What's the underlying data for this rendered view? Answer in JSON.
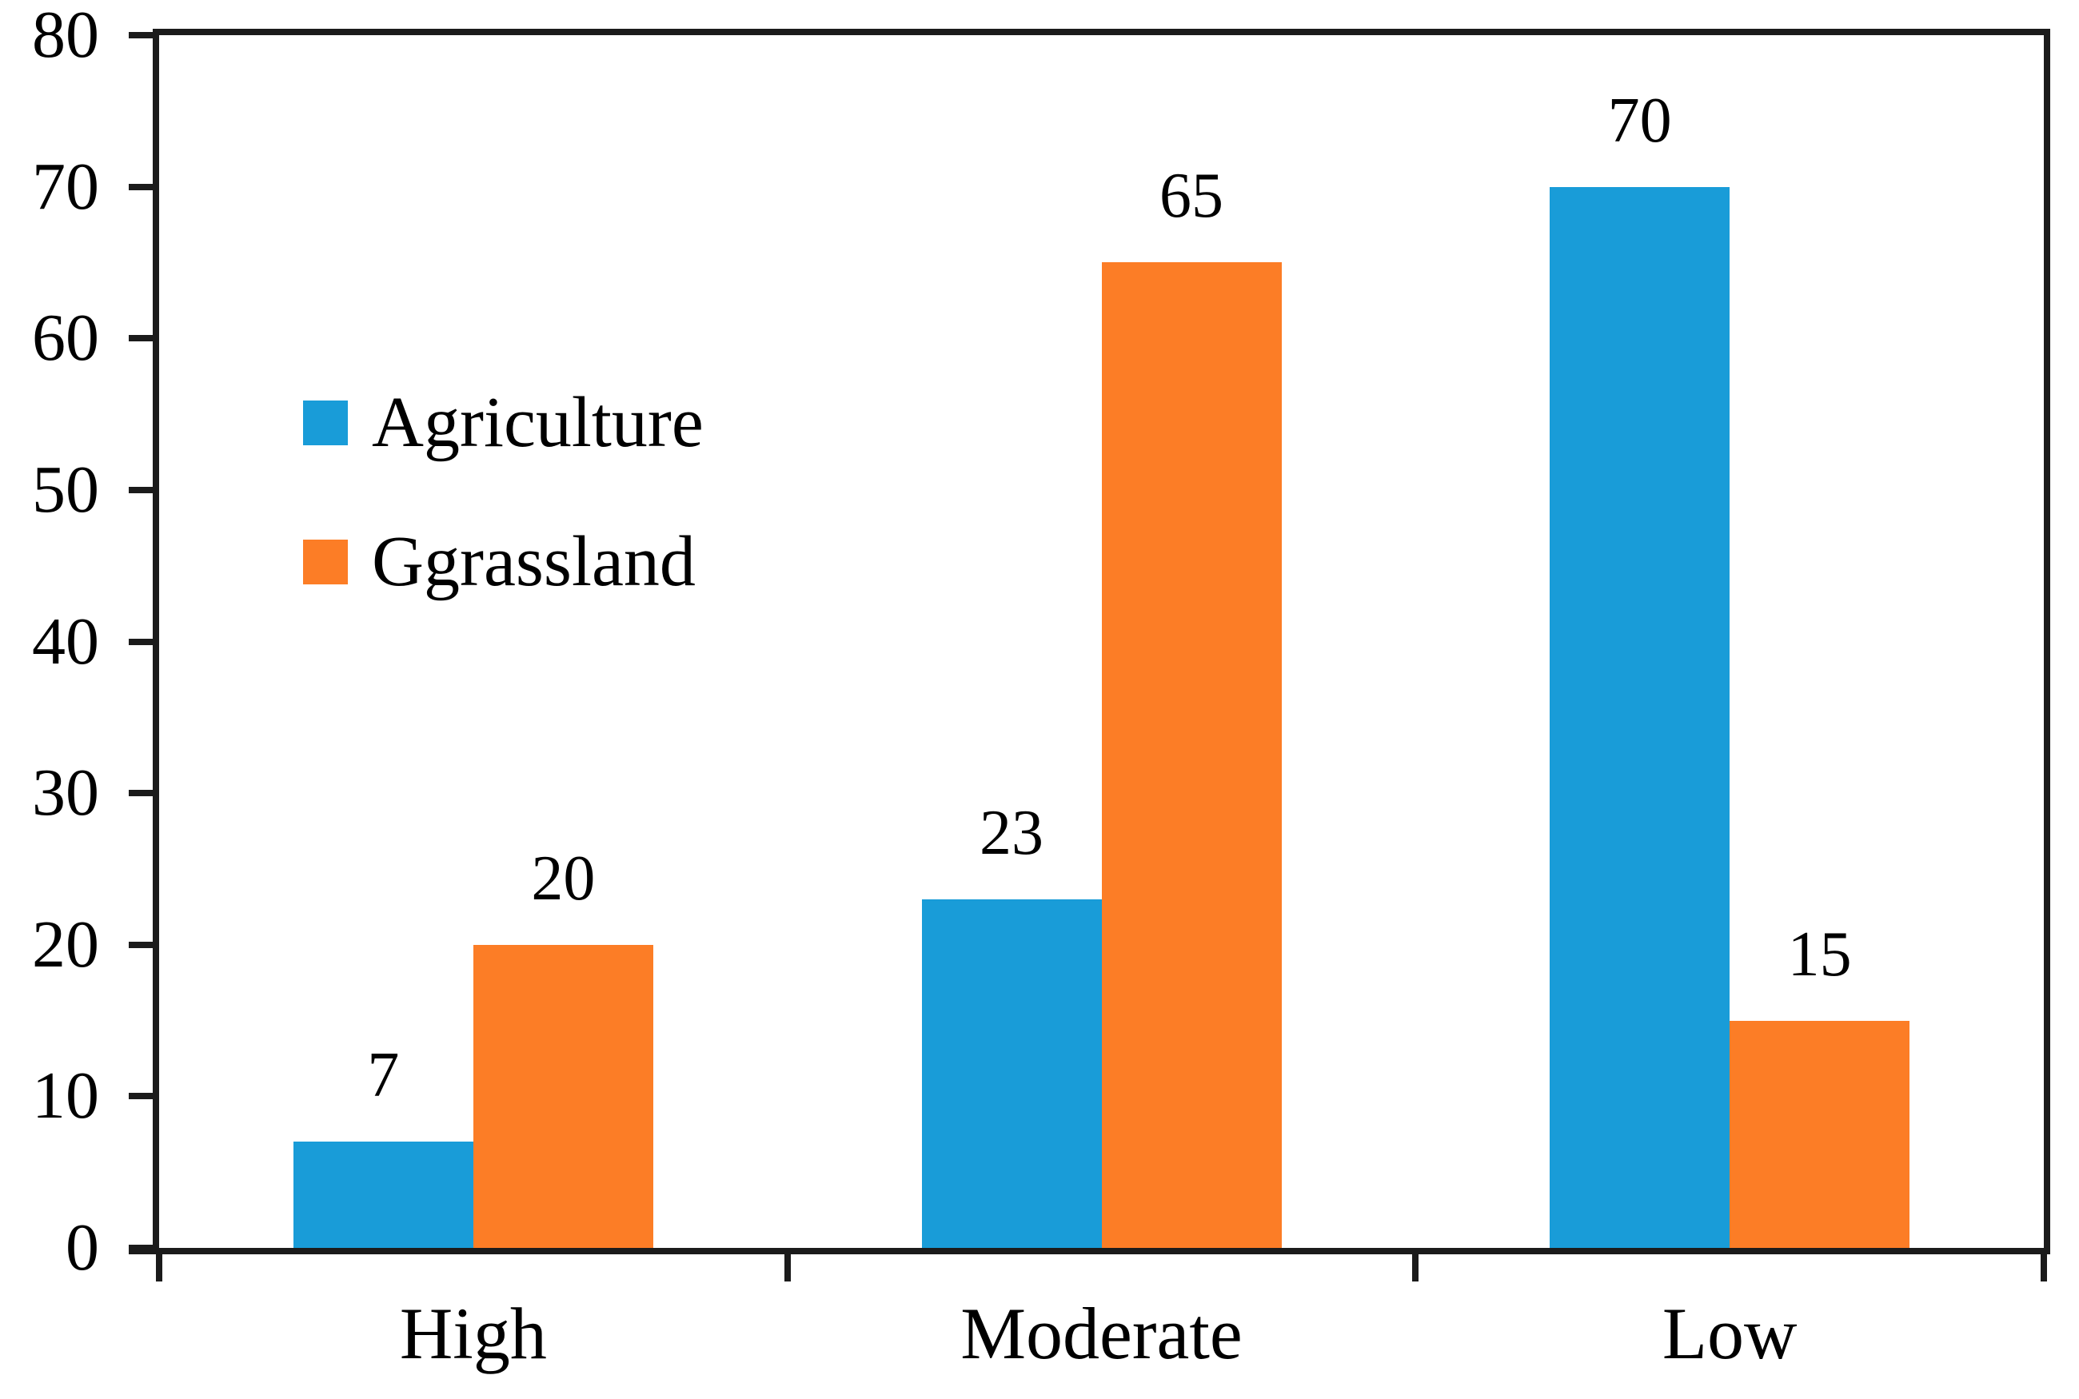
{
  "chart_data": {
    "type": "bar",
    "title": "",
    "xlabel": "",
    "ylabel": "",
    "categories": [
      "High",
      "Moderate",
      "Low"
    ],
    "series": [
      {
        "name": "Agriculture",
        "color": "#199CD8",
        "values": [
          7,
          23,
          70
        ]
      },
      {
        "name": "Ggrassland",
        "color": "#FC7D26",
        "values": [
          20,
          65,
          15
        ]
      }
    ],
    "data_labels": [
      {
        "series": "Agriculture",
        "values": [
          "7",
          "23",
          "70"
        ]
      },
      {
        "series": "Ggrassland",
        "values": [
          "20",
          "65",
          "15"
        ]
      }
    ],
    "ylim": [
      0,
      80
    ],
    "yticks": [
      "0",
      "10",
      "20",
      "30",
      "40",
      "50",
      "60",
      "70",
      "80"
    ],
    "grid": false,
    "legend_position": "upper-left-inside",
    "axis_color": "#1b1b1b",
    "background_color": "#ffffff"
  }
}
